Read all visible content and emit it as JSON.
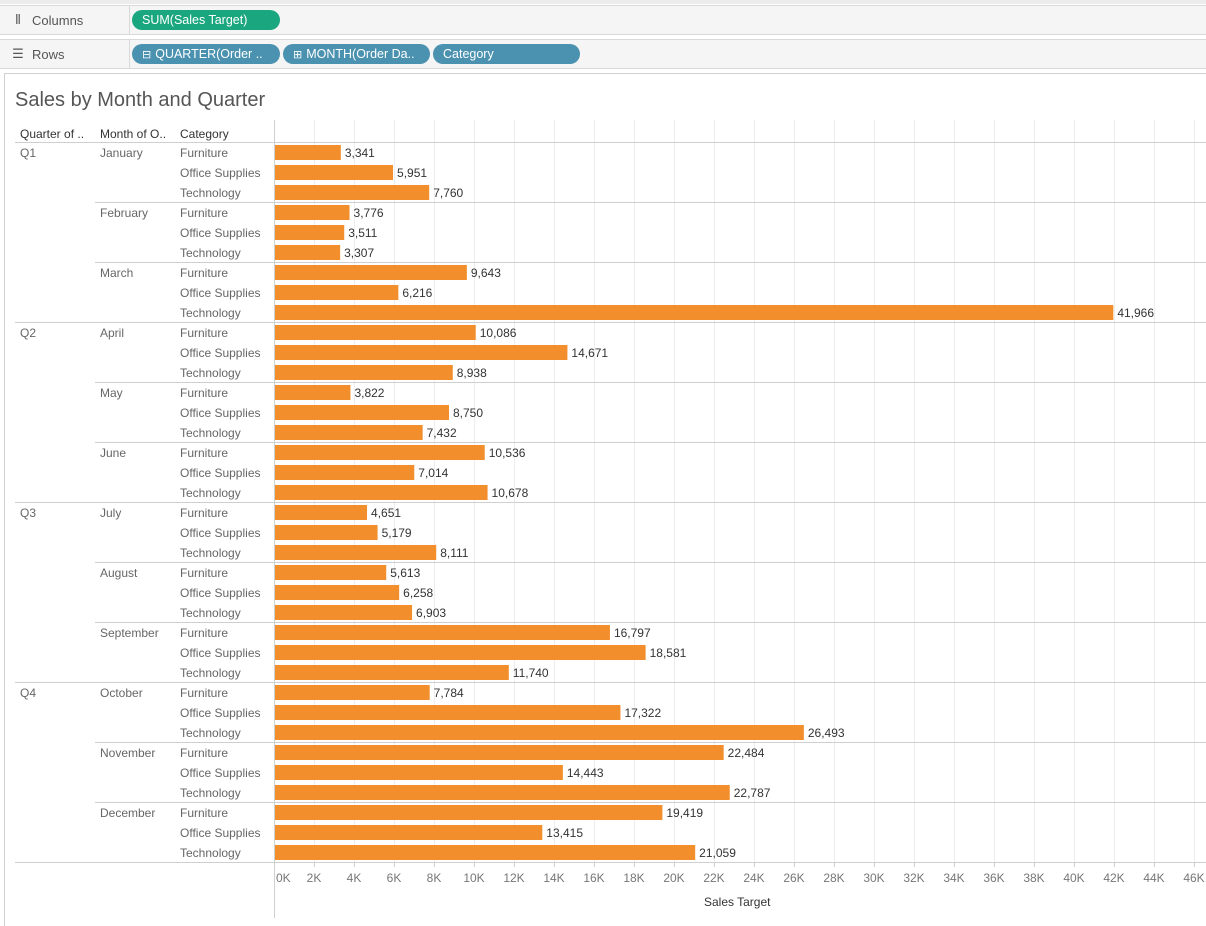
{
  "shelves": {
    "columns_label": "Columns",
    "rows_label": "Rows",
    "columns_pills": [
      {
        "text": "SUM(Sales Target)",
        "color": "#1aa77f"
      }
    ],
    "rows_pills": [
      {
        "prefix": "⊟",
        "text": "QUARTER(Order ..",
        "color": "#4b91b0"
      },
      {
        "prefix": "⊞",
        "text": "MONTH(Order Da..",
        "color": "#4b91b0"
      },
      {
        "prefix": "",
        "text": "Category",
        "color": "#4b91b0"
      }
    ]
  },
  "headers": {
    "quarter": "Quarter of ..",
    "month": "Month of O..",
    "category": "Category"
  },
  "chart_data": {
    "type": "bar",
    "orientation": "horizontal",
    "title": "Sales by Month and Quarter",
    "xlabel": "Sales Target",
    "ylabel": "",
    "xlim": [
      0,
      46000
    ],
    "x_ticks": [
      "0K",
      "2K",
      "4K",
      "6K",
      "8K",
      "10K",
      "12K",
      "14K",
      "16K",
      "18K",
      "20K",
      "22K",
      "24K",
      "26K",
      "28K",
      "30K",
      "32K",
      "34K",
      "36K",
      "38K",
      "40K",
      "42K",
      "44K",
      "46K"
    ],
    "bar_color": "#f28e2b",
    "categories": [
      "Furniture",
      "Office Supplies",
      "Technology"
    ],
    "quarters": [
      {
        "name": "Q1",
        "months": [
          {
            "name": "January",
            "values": [
              3341,
              5951,
              7760
            ],
            "labels": [
              "3,341",
              "5,951",
              "7,760"
            ]
          },
          {
            "name": "February",
            "values": [
              3776,
              3511,
              3307
            ],
            "labels": [
              "3,776",
              "3,511",
              "3,307"
            ]
          },
          {
            "name": "March",
            "values": [
              9643,
              6216,
              41966
            ],
            "labels": [
              "9,643",
              "6,216",
              "41,966"
            ]
          }
        ]
      },
      {
        "name": "Q2",
        "months": [
          {
            "name": "April",
            "values": [
              10086,
              14671,
              8938
            ],
            "labels": [
              "10,086",
              "14,671",
              "8,938"
            ]
          },
          {
            "name": "May",
            "values": [
              3822,
              8750,
              7432
            ],
            "labels": [
              "3,822",
              "8,750",
              "7,432"
            ]
          },
          {
            "name": "June",
            "values": [
              10536,
              7014,
              10678
            ],
            "labels": [
              "10,536",
              "7,014",
              "10,678"
            ]
          }
        ]
      },
      {
        "name": "Q3",
        "months": [
          {
            "name": "July",
            "values": [
              4651,
              5179,
              8111
            ],
            "labels": [
              "4,651",
              "5,179",
              "8,111"
            ]
          },
          {
            "name": "August",
            "values": [
              5613,
              6258,
              6903
            ],
            "labels": [
              "5,613",
              "6,258",
              "6,903"
            ]
          },
          {
            "name": "September",
            "values": [
              16797,
              18581,
              11740
            ],
            "labels": [
              "16,797",
              "18,581",
              "11,740"
            ]
          }
        ]
      },
      {
        "name": "Q4",
        "months": [
          {
            "name": "October",
            "values": [
              7784,
              17322,
              26493
            ],
            "labels": [
              "7,784",
              "17,322",
              "26,493"
            ]
          },
          {
            "name": "November",
            "values": [
              22484,
              14443,
              22787
            ],
            "labels": [
              "22,484",
              "14,443",
              "22,787"
            ]
          },
          {
            "name": "December",
            "values": [
              19419,
              13415,
              21059
            ],
            "labels": [
              "19,419",
              "13,415",
              "21,059"
            ]
          }
        ]
      }
    ]
  }
}
